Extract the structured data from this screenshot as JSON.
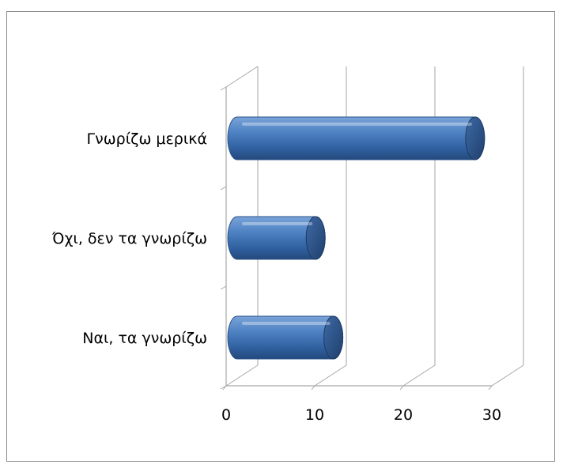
{
  "chart_data": {
    "type": "bar",
    "orientation": "horizontal",
    "style": "3d-cylinder",
    "categories": [
      "Γνωρίζω μερικά",
      "Όχι, δεν τα γνωρίζω",
      "Ναι, τα γνωρίζω"
    ],
    "values": [
      29,
      11,
      13
    ],
    "xticks": [
      "0",
      "10",
      "20",
      "30"
    ],
    "xlim": [
      0,
      30
    ],
    "grid": true,
    "legend": "none",
    "bar_color": "#4a7ebb",
    "title": "",
    "xlabel": "",
    "ylabel": ""
  }
}
